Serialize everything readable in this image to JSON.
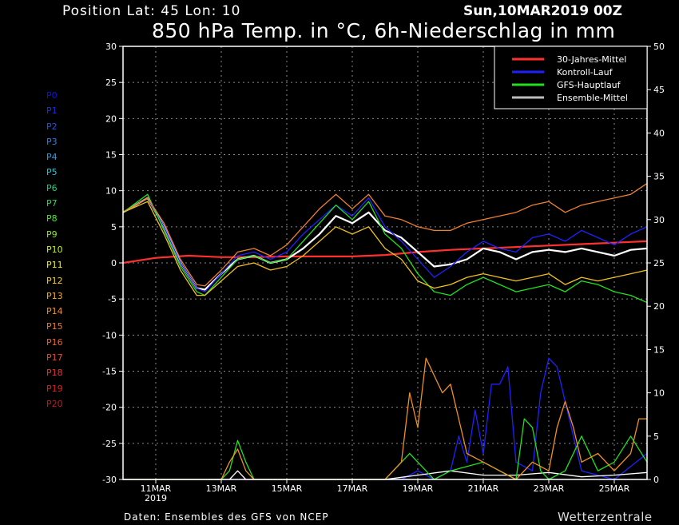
{
  "header": {
    "position": "Position   Lat: 45 Lon: 10",
    "date": "Sun,10MAR2019 00Z",
    "title": "850 hPa Temp. in °C, 6h-Niederschlag in mm"
  },
  "footer": {
    "source": "Daten: Ensembles des GFS von NCEP",
    "brand": "Wetterzentrale"
  },
  "members": [
    {
      "label": "P0",
      "color": "#1010ee"
    },
    {
      "label": "P1",
      "color": "#1530ee"
    },
    {
      "label": "P2",
      "color": "#2050f0"
    },
    {
      "label": "P3",
      "color": "#2a80f0"
    },
    {
      "label": "P4",
      "color": "#20a0f0"
    },
    {
      "label": "P5",
      "color": "#20c8e0"
    },
    {
      "label": "P6",
      "color": "#20d080"
    },
    {
      "label": "P7",
      "color": "#20e050"
    },
    {
      "label": "P8",
      "color": "#40f020"
    },
    {
      "label": "P9",
      "color": "#80f020"
    },
    {
      "label": "P10",
      "color": "#c0f020"
    },
    {
      "label": "P11",
      "color": "#f0f020"
    },
    {
      "label": "P12",
      "color": "#f0d020"
    },
    {
      "label": "P13",
      "color": "#f0b020"
    },
    {
      "label": "P14",
      "color": "#f09020"
    },
    {
      "label": "P15",
      "color": "#f07830"
    },
    {
      "label": "P16",
      "color": "#f06030"
    },
    {
      "label": "P17",
      "color": "#f04830"
    },
    {
      "label": "P18",
      "color": "#f03030"
    },
    {
      "label": "P19",
      "color": "#e02020"
    },
    {
      "label": "P20",
      "color": "#c81818"
    }
  ],
  "legend": [
    {
      "label": "30-Jahres-Mittel",
      "color": "#ff3030"
    },
    {
      "label": "Kontroll-Lauf",
      "color": "#2020ff"
    },
    {
      "label": "GFS-Hauptlauf",
      "color": "#20e020"
    },
    {
      "label": "Ensemble-Mittel",
      "color": "#bbbbbb"
    }
  ],
  "chart_data": {
    "type": "line",
    "title": "850 hPa Temp. in °C, 6h-Niederschlag in mm",
    "x_ticks": [
      "11MAR",
      "13MAR",
      "15MAR",
      "17MAR",
      "19MAR",
      "21MAR",
      "23MAR",
      "25MAR"
    ],
    "x_sub_label": "2019",
    "x_range_days": [
      10.0,
      26.0
    ],
    "ylim": [
      -30,
      30
    ],
    "y_ticks": [
      30,
      25,
      20,
      15,
      10,
      5,
      0,
      -5,
      -10,
      -15,
      -20,
      -25,
      -30
    ],
    "y2lim": [
      0,
      50
    ],
    "y2_ticks": [
      50,
      45,
      40,
      35,
      30,
      25,
      20,
      15,
      10,
      5,
      0
    ],
    "grid": true,
    "legend_position": "top-right",
    "series": [
      {
        "name": "30-Jahres-Mittel",
        "axis": "temp",
        "color": "#ff3030",
        "x": [
          10.0,
          11.0,
          12.0,
          13.0,
          14.0,
          15.0,
          16.0,
          17.0,
          18.0,
          19.0,
          20.0,
          21.0,
          22.0,
          23.0,
          24.0,
          25.0,
          26.0
        ],
        "values": [
          0.0,
          0.7,
          1.0,
          0.8,
          0.8,
          0.9,
          0.9,
          0.9,
          1.1,
          1.5,
          1.8,
          2.0,
          2.2,
          2.4,
          2.6,
          2.8,
          3.0
        ]
      },
      {
        "name": "Ensemble-Mittel",
        "axis": "temp",
        "color": "#ffffff",
        "x": [
          10.0,
          10.75,
          11.25,
          11.75,
          12.25,
          12.5,
          13.0,
          13.5,
          14.0,
          14.5,
          15.0,
          15.5,
          16.0,
          16.5,
          17.0,
          17.5,
          18.0,
          18.5,
          19.0,
          19.5,
          20.0,
          20.5,
          21.0,
          21.5,
          22.0,
          22.5,
          23.0,
          23.5,
          24.0,
          24.5,
          25.0,
          25.5,
          26.0
        ],
        "values": [
          7.0,
          9.0,
          5.0,
          0.0,
          -3.5,
          -3.7,
          -1.5,
          0.5,
          1.0,
          0.0,
          0.5,
          2.0,
          4.0,
          6.5,
          5.5,
          7.0,
          4.5,
          3.5,
          1.5,
          -0.5,
          -0.2,
          0.5,
          2.0,
          1.5,
          0.5,
          1.5,
          1.8,
          1.5,
          2.0,
          1.5,
          1.0,
          1.8,
          2.0
        ]
      },
      {
        "name": "Kontroll-Lauf",
        "axis": "temp",
        "color": "#2020ff",
        "x": [
          10.0,
          10.75,
          11.25,
          11.75,
          12.25,
          12.5,
          13.0,
          13.5,
          14.0,
          14.5,
          15.0,
          15.5,
          16.0,
          16.5,
          17.0,
          17.5,
          18.0,
          18.5,
          19.0,
          19.5,
          20.0,
          20.5,
          21.0,
          21.5,
          22.0,
          22.5,
          23.0,
          23.5,
          24.0,
          24.5,
          25.0,
          25.5,
          26.0
        ],
        "values": [
          7.0,
          9.0,
          5.0,
          0.0,
          -3.5,
          -4.0,
          -1.5,
          1.0,
          1.5,
          0.5,
          1.5,
          4.0,
          6.0,
          8.0,
          6.5,
          9.0,
          5.0,
          3.0,
          0.5,
          -2.0,
          -0.5,
          1.5,
          3.0,
          2.0,
          1.5,
          3.5,
          4.0,
          3.0,
          4.5,
          3.5,
          2.5,
          4.0,
          5.0
        ]
      },
      {
        "name": "GFS-Hauptlauf",
        "axis": "temp",
        "color": "#20e020",
        "x": [
          10.0,
          10.75,
          11.25,
          11.75,
          12.25,
          12.5,
          13.0,
          13.5,
          14.0,
          14.5,
          15.0,
          15.5,
          16.0,
          16.5,
          17.0,
          17.5,
          18.0,
          18.5,
          19.0,
          19.5,
          20.0,
          20.5,
          21.0,
          21.5,
          22.0,
          22.5,
          23.0,
          23.5,
          24.0,
          24.5,
          25.0,
          25.5,
          26.0
        ],
        "values": [
          7.0,
          9.5,
          4.5,
          -0.5,
          -4.0,
          -4.5,
          -2.0,
          0.5,
          1.0,
          0.0,
          0.5,
          3.0,
          5.5,
          8.0,
          6.0,
          8.5,
          4.0,
          2.0,
          -1.5,
          -4.0,
          -4.5,
          -3.0,
          -2.0,
          -3.0,
          -4.0,
          -3.5,
          -3.0,
          -4.0,
          -2.5,
          -3.0,
          -4.0,
          -4.5,
          -5.5
        ]
      },
      {
        "name": "Ensemble-Spread oben",
        "axis": "temp",
        "color": "#f08030",
        "x": [
          10.0,
          10.75,
          11.25,
          11.75,
          12.25,
          12.5,
          13.0,
          13.5,
          14.0,
          14.5,
          15.0,
          15.5,
          16.0,
          16.5,
          17.0,
          17.5,
          18.0,
          18.5,
          19.0,
          19.5,
          20.0,
          20.5,
          21.0,
          21.5,
          22.0,
          22.5,
          23.0,
          23.5,
          24.0,
          24.5,
          25.0,
          25.5,
          26.0
        ],
        "values": [
          7.0,
          9.0,
          5.5,
          0.5,
          -3.0,
          -3.2,
          -1.0,
          1.5,
          2.0,
          1.0,
          2.5,
          5.0,
          7.5,
          9.5,
          7.5,
          9.5,
          6.5,
          6.0,
          5.0,
          4.5,
          4.5,
          5.5,
          6.0,
          6.5,
          7.0,
          8.0,
          8.5,
          7.0,
          8.0,
          8.5,
          9.0,
          9.5,
          11.0
        ]
      },
      {
        "name": "Ensemble-Spread unten",
        "axis": "temp",
        "color": "#f0c020",
        "x": [
          10.0,
          10.75,
          11.25,
          11.75,
          12.25,
          12.5,
          13.0,
          13.5,
          14.0,
          14.5,
          15.0,
          15.5,
          16.0,
          16.5,
          17.0,
          17.5,
          18.0,
          18.5,
          19.0,
          19.5,
          20.0,
          20.5,
          21.0,
          21.5,
          22.0,
          22.5,
          23.0,
          23.5,
          24.0,
          24.5,
          25.0,
          25.5,
          26.0
        ],
        "values": [
          7.0,
          8.5,
          4.0,
          -1.0,
          -4.5,
          -4.5,
          -2.5,
          -0.5,
          0.0,
          -1.0,
          -0.5,
          1.0,
          3.0,
          5.0,
          4.0,
          5.0,
          2.0,
          0.5,
          -2.5,
          -3.5,
          -3.0,
          -2.0,
          -1.5,
          -2.0,
          -2.5,
          -2.0,
          -1.5,
          -3.0,
          -2.0,
          -2.5,
          -2.0,
          -1.5,
          -1.0
        ]
      },
      {
        "name": "Niederschlag Kontroll-Lauf",
        "axis": "precip",
        "color": "#2020ff",
        "x": [
          10.0,
          18.0,
          18.5,
          19.0,
          19.5,
          20.0,
          20.25,
          20.5,
          20.75,
          21.0,
          21.25,
          21.5,
          21.75,
          22.0,
          22.5,
          22.75,
          23.0,
          23.25,
          23.5,
          23.75,
          24.0,
          25.0,
          26.0
        ],
        "values": [
          0,
          0,
          0,
          1,
          0,
          1,
          5,
          2,
          8,
          3,
          11,
          11,
          13,
          2,
          1,
          10,
          14,
          13,
          9,
          5,
          1,
          0,
          3
        ]
      },
      {
        "name": "Niederschlag Ensemble-Mittel",
        "axis": "precip",
        "color": "#ffffff",
        "x": [
          10.0,
          13.25,
          13.5,
          13.75,
          14.0,
          18.0,
          19.0,
          20.0,
          21.0,
          22.0,
          23.0,
          24.0,
          25.0,
          26.0
        ],
        "values": [
          0,
          0,
          1,
          0,
          0,
          0,
          0.5,
          1,
          0.5,
          0.5,
          0.8,
          0.3,
          0.5,
          0.8
        ]
      },
      {
        "name": "Niederschlag GFS-Hauptlauf",
        "axis": "precip",
        "color": "#20e020",
        "x": [
          10.0,
          13.0,
          13.25,
          13.5,
          13.75,
          14.0,
          18.0,
          18.75,
          19.0,
          19.25,
          19.5,
          20.0,
          21.0,
          22.0,
          22.25,
          22.5,
          22.75,
          23.0,
          23.5,
          24.0,
          24.5,
          25.0,
          25.5,
          26.0
        ],
        "values": [
          0,
          0,
          1,
          4.5,
          2,
          0,
          0,
          3,
          2,
          1,
          0,
          1,
          2,
          0,
          7,
          6,
          1,
          0,
          1,
          5,
          1,
          2,
          5,
          2
        ]
      },
      {
        "name": "Niederschlag Spread",
        "axis": "precip",
        "color": "#f09020",
        "x": [
          10.0,
          13.0,
          13.25,
          13.5,
          13.75,
          14.0,
          18.0,
          18.5,
          18.75,
          19.0,
          19.25,
          19.5,
          19.75,
          20.0,
          20.5,
          21.0,
          21.5,
          22.0,
          22.5,
          23.0,
          23.25,
          23.5,
          23.75,
          24.0,
          24.5,
          25.0,
          25.5,
          25.75,
          26.0
        ],
        "values": [
          0,
          0,
          2,
          3.5,
          1,
          0,
          0,
          2,
          10,
          6,
          14,
          12,
          10,
          11,
          3,
          2,
          1,
          0,
          2,
          1,
          6,
          9,
          6,
          2,
          3,
          1,
          3,
          7,
          7
        ]
      }
    ]
  }
}
